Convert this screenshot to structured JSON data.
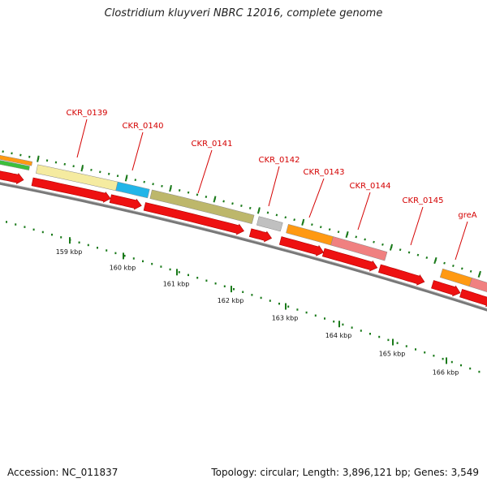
{
  "title": "Clostridium kluyveri NBRC 12016, complete genome",
  "footer": {
    "accession": "Accession: NC_011837",
    "summary": "Topology: circular; Length: 3,896,121 bp; Genes: 3,549"
  },
  "colors": {
    "cds_red": "#ee1111",
    "backbone": "#777777",
    "tick_green": "#1a7a1a",
    "label_red": "#d40000"
  },
  "genes": [
    {
      "label": "CKR_0139",
      "color": "#f5eba0"
    },
    {
      "label": "CKR_0140",
      "color": "#22b5e8"
    },
    {
      "label": "CKR_0141",
      "color": "#bdb76b"
    },
    {
      "label": "CKR_0142",
      "color": "#c0c0c0"
    },
    {
      "label": "CKR_0143",
      "color": "#ff9912"
    },
    {
      "label": "CKR_0144",
      "color": "#f08080"
    },
    {
      "label": "CKR_0145",
      "color": ""
    },
    {
      "label": "greA",
      "color": "#ff9912"
    }
  ],
  "scale_labels": [
    "159 kbp",
    "160 kbp",
    "161 kbp",
    "162 kbp",
    "163 kbp",
    "164 kbp",
    "165 kbp",
    "166 kbp"
  ]
}
